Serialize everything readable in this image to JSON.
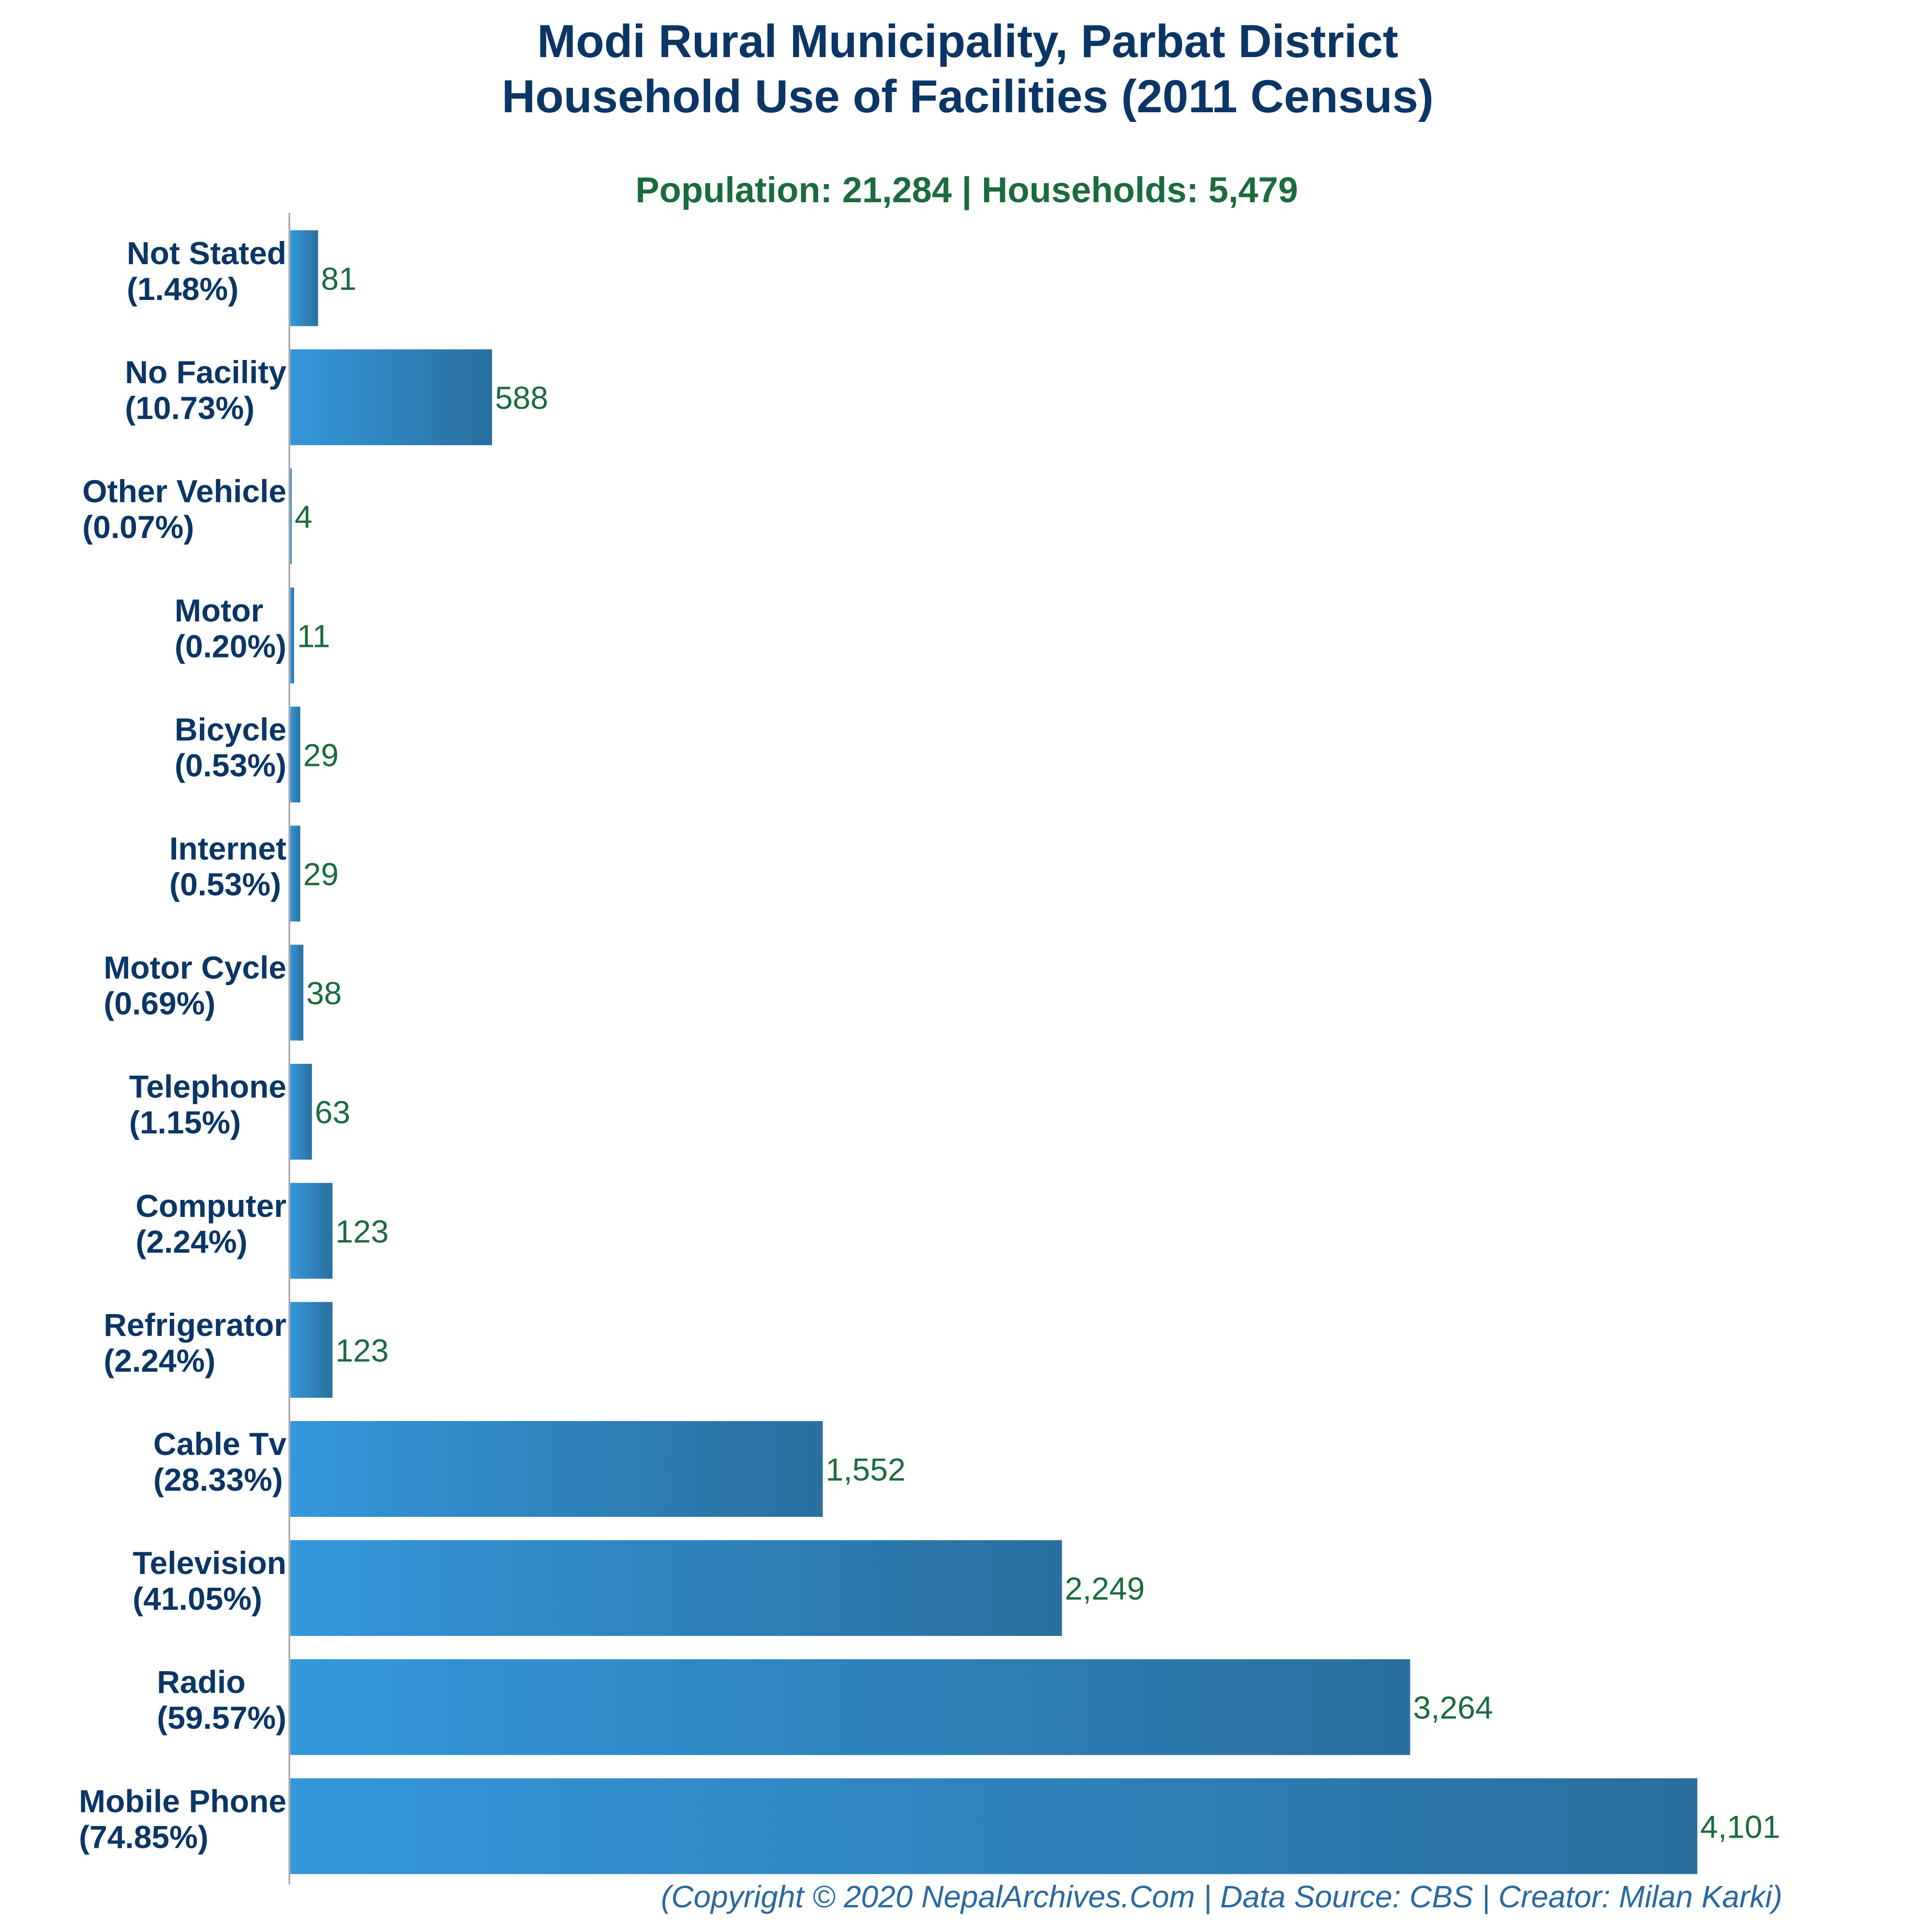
{
  "chart_data": {
    "type": "bar",
    "orientation": "horizontal",
    "title": "Modi Rural Municipality, Parbat District",
    "title_line2": "Household Use of Facilities (2011 Census)",
    "subtitle": "Population: 21,284 | Households: 5,479",
    "footer": "(Copyright © 2020 NepalArchives.Com | Data Source: CBS | Creator: Milan Karki)",
    "categories": [
      "Not Stated",
      "No Facility",
      "Other Vehicle",
      "Motor",
      "Bicycle",
      "Internet",
      "Motor Cycle",
      "Telephone",
      "Computer",
      "Refrigerator",
      "Cable Tv",
      "Television",
      "Radio",
      "Mobile Phone"
    ],
    "percent_labels": [
      "(1.48%)",
      "(10.73%)",
      "(0.07%)",
      "(0.20%)",
      "(0.53%)",
      "(0.53%)",
      "(0.69%)",
      "(1.15%)",
      "(2.24%)",
      "(2.24%)",
      "(28.33%)",
      "(41.05%)",
      "(59.57%)",
      "(74.85%)"
    ],
    "values": [
      81,
      588,
      4,
      11,
      29,
      29,
      38,
      63,
      123,
      123,
      1552,
      2249,
      3264,
      4101
    ],
    "value_labels": [
      "81",
      "588",
      "4",
      "11",
      "29",
      "29",
      "38",
      "63",
      "123",
      "123",
      "1,552",
      "2,249",
      "3,264",
      "4,101"
    ],
    "xlim": [
      0,
      4101
    ],
    "grid": false,
    "colors": {
      "bar_start": "#3497db",
      "bar_end": "#2a6f9e",
      "title": "#0b3565",
      "subtitle": "#1a6b3e",
      "value_text": "#1a6b3e",
      "axis": "#999999",
      "footer": "#2a68a0"
    }
  }
}
